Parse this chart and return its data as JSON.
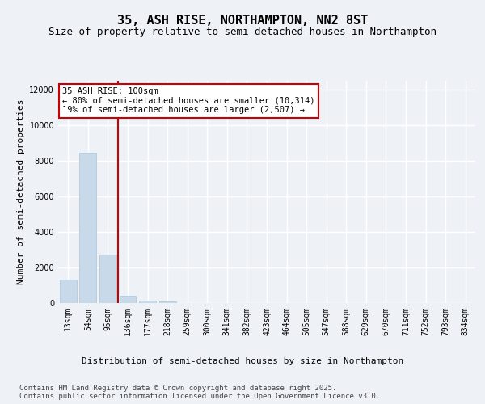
{
  "title": "35, ASH RISE, NORTHAMPTON, NN2 8ST",
  "subtitle": "Size of property relative to semi-detached houses in Northampton",
  "xlabel": "Distribution of semi-detached houses by size in Northampton",
  "ylabel": "Number of semi-detached properties",
  "categories": [
    "13sqm",
    "54sqm",
    "95sqm",
    "136sqm",
    "177sqm",
    "218sqm",
    "259sqm",
    "300sqm",
    "341sqm",
    "382sqm",
    "423sqm",
    "464sqm",
    "505sqm",
    "547sqm",
    "588sqm",
    "629sqm",
    "670sqm",
    "711sqm",
    "752sqm",
    "793sqm",
    "834sqm"
  ],
  "values": [
    1310,
    8450,
    2720,
    390,
    155,
    90,
    0,
    0,
    0,
    0,
    0,
    0,
    0,
    0,
    0,
    0,
    0,
    0,
    0,
    0,
    0
  ],
  "bar_color": "#c8d9ea",
  "bar_edge_color": "#a8c4d8",
  "highlight_line_color": "#cc0000",
  "annotation_text": "35 ASH RISE: 100sqm\n← 80% of semi-detached houses are smaller (10,314)\n19% of semi-detached houses are larger (2,507) →",
  "annotation_box_color": "#ffffff",
  "annotation_box_edge_color": "#cc0000",
  "ylim": [
    0,
    12500
  ],
  "yticks": [
    0,
    2000,
    4000,
    6000,
    8000,
    10000,
    12000
  ],
  "footer_text": "Contains HM Land Registry data © Crown copyright and database right 2025.\nContains public sector information licensed under the Open Government Licence v3.0.",
  "bg_color": "#eef2f7",
  "plot_bg_color": "#eef2f7",
  "grid_color": "#ffffff",
  "title_fontsize": 11,
  "subtitle_fontsize": 9,
  "axis_label_fontsize": 8,
  "tick_fontsize": 7,
  "annotation_fontsize": 7.5,
  "footer_fontsize": 6.5
}
